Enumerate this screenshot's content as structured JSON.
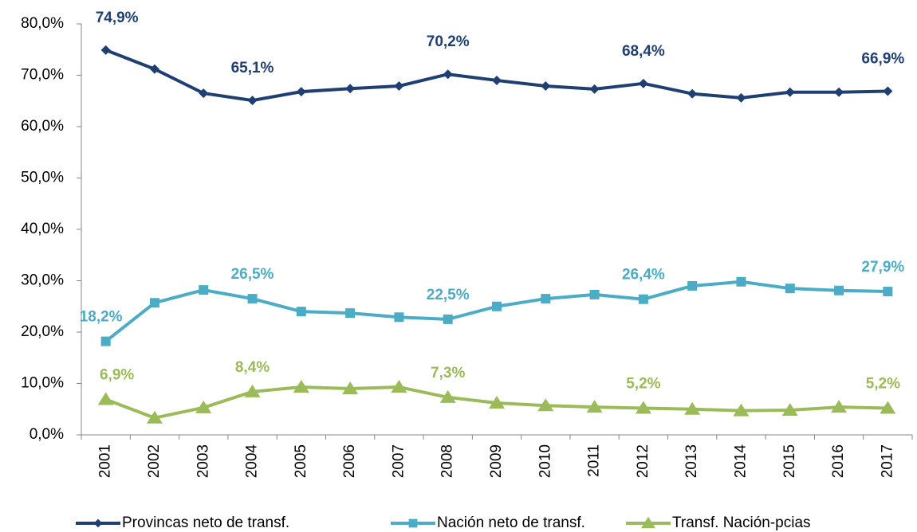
{
  "chart_data": {
    "type": "line",
    "categories": [
      "2001",
      "2002",
      "2003",
      "2004",
      "2005",
      "2006",
      "2007",
      "2008",
      "2009",
      "2010",
      "2011",
      "2012",
      "2013",
      "2014",
      "2015",
      "2016",
      "2017"
    ],
    "ylim": [
      0,
      80
    ],
    "yticks": [
      {
        "value": 0,
        "label": "0,0%"
      },
      {
        "value": 10,
        "label": "10,0%"
      },
      {
        "value": 20,
        "label": "20,0%"
      },
      {
        "value": 30,
        "label": "30,0%"
      },
      {
        "value": 40,
        "label": "40,0%"
      },
      {
        "value": 50,
        "label": "50,0%"
      },
      {
        "value": 60,
        "label": "60,0%"
      },
      {
        "value": 70,
        "label": "70,0%"
      },
      {
        "value": 80,
        "label": "80,0%"
      }
    ],
    "grid": false,
    "legend": "bottom",
    "series": [
      {
        "name": "Provincas neto de transf.",
        "color": "#1f3f73",
        "marker": "diamond",
        "values": [
          74.9,
          71.2,
          66.5,
          65.1,
          66.8,
          67.4,
          67.9,
          70.2,
          69.0,
          67.9,
          67.3,
          68.4,
          66.4,
          65.6,
          66.7,
          66.7,
          66.9
        ],
        "value_labels": [
          "74,9%",
          null,
          null,
          "65,1%",
          null,
          null,
          null,
          "70,2%",
          null,
          null,
          null,
          "68,4%",
          null,
          null,
          null,
          null,
          "66,9%"
        ]
      },
      {
        "name": "Nación neto de transf.",
        "color": "#4bacc6",
        "marker": "square",
        "values": [
          18.2,
          25.7,
          28.2,
          26.5,
          24.0,
          23.7,
          22.9,
          22.5,
          25.0,
          26.5,
          27.3,
          26.4,
          29.0,
          29.8,
          28.5,
          28.1,
          27.9
        ],
        "value_labels": [
          "18,2%",
          null,
          null,
          "26,5%",
          null,
          null,
          null,
          "22,5%",
          null,
          null,
          null,
          "26,4%",
          null,
          null,
          null,
          null,
          "27,9%"
        ]
      },
      {
        "name": "Transf. Nación-pcias",
        "color": "#9bbb59",
        "marker": "triangle",
        "values": [
          6.9,
          3.3,
          5.3,
          8.4,
          9.3,
          9.0,
          9.3,
          7.3,
          6.2,
          5.7,
          5.4,
          5.2,
          5.0,
          4.7,
          4.8,
          5.4,
          5.2
        ],
        "value_labels": [
          "6,9%",
          null,
          null,
          "8,4%",
          null,
          null,
          null,
          "7,3%",
          null,
          null,
          null,
          "5,2%",
          null,
          null,
          null,
          null,
          "5,2%"
        ]
      }
    ]
  }
}
